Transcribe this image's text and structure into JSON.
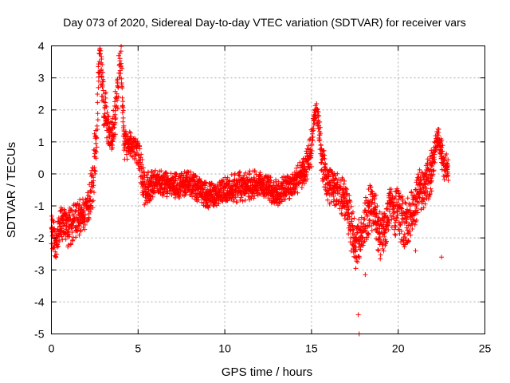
{
  "chart_data": {
    "type": "scatter",
    "title": "Day 073 of 2020, Sidereal Day-to-day VTEC variation (SDTVAR) for receiver vars",
    "xlabel": "GPS time / hours",
    "ylabel": "SDTVAR / TECUs",
    "xlim": [
      0,
      25
    ],
    "ylim": [
      -5,
      4
    ],
    "xticks": [
      "0",
      "5",
      "10",
      "15",
      "20",
      "25"
    ],
    "yticks": [
      "4",
      "3",
      "2",
      "1",
      "0",
      "-1",
      "-2",
      "-3",
      "-4",
      "-5"
    ],
    "grid": true,
    "marker": "+",
    "color": "#ff0000",
    "series": [
      {
        "name": "vars",
        "trend": [
          [
            0.0,
            -1.8
          ],
          [
            0.3,
            -2.1
          ],
          [
            0.6,
            -1.6
          ],
          [
            1.0,
            -1.7
          ],
          [
            1.5,
            -1.4
          ],
          [
            2.0,
            -1.2
          ],
          [
            2.4,
            -0.3
          ],
          [
            2.6,
            1.5
          ],
          [
            2.8,
            3.7
          ],
          [
            3.0,
            2.2
          ],
          [
            3.3,
            1.5
          ],
          [
            3.5,
            1.0
          ],
          [
            3.8,
            2.5
          ],
          [
            4.0,
            3.8
          ],
          [
            4.2,
            1.0
          ],
          [
            4.6,
            0.9
          ],
          [
            5.0,
            0.7
          ],
          [
            5.4,
            -0.6
          ],
          [
            6.0,
            -0.2
          ],
          [
            7.0,
            -0.4
          ],
          [
            8.0,
            -0.3
          ],
          [
            9.0,
            -0.7
          ],
          [
            10.0,
            -0.5
          ],
          [
            11.0,
            -0.4
          ],
          [
            12.0,
            -0.3
          ],
          [
            13.0,
            -0.6
          ],
          [
            14.0,
            -0.3
          ],
          [
            14.6,
            0.1
          ],
          [
            15.0,
            0.8
          ],
          [
            15.2,
            2.0
          ],
          [
            15.4,
            1.8
          ],
          [
            15.6,
            0.4
          ],
          [
            16.0,
            -0.4
          ],
          [
            16.5,
            -0.5
          ],
          [
            17.0,
            -0.9
          ],
          [
            17.3,
            -1.7
          ],
          [
            17.6,
            -2.4
          ],
          [
            18.0,
            -1.5
          ],
          [
            18.5,
            -1.0
          ],
          [
            19.0,
            -2.0
          ],
          [
            19.5,
            -1.0
          ],
          [
            20.0,
            -1.3
          ],
          [
            20.4,
            -1.6
          ],
          [
            20.8,
            -1.2
          ],
          [
            21.2,
            -0.6
          ],
          [
            21.6,
            -0.3
          ],
          [
            22.0,
            0.2
          ],
          [
            22.3,
            1.2
          ],
          [
            22.6,
            0.4
          ],
          [
            22.9,
            0.0
          ]
        ],
        "spread": [
          0.5,
          0.6,
          0.6,
          0.6,
          0.6,
          0.5,
          0.8,
          1.0,
          0.6,
          0.8,
          0.8,
          0.6,
          0.9,
          0.6,
          0.6,
          0.4,
          0.4,
          0.6,
          0.4,
          0.4,
          0.4,
          0.4,
          0.4,
          0.5,
          0.4,
          0.4,
          0.4,
          0.5,
          0.6,
          0.2,
          0.4,
          0.6,
          0.6,
          0.5,
          0.7,
          0.8,
          0.7,
          0.7,
          0.8,
          0.8,
          0.8,
          0.8,
          0.8,
          0.7,
          0.7,
          0.7,
          0.7,
          0.3,
          0.5,
          0.5
        ],
        "outliers": [
          [
            17.7,
            -4.4
          ],
          [
            17.75,
            -5.0
          ],
          [
            18.1,
            -3.15
          ],
          [
            21.0,
            -2.4
          ],
          [
            22.5,
            -2.6
          ]
        ]
      }
    ]
  }
}
